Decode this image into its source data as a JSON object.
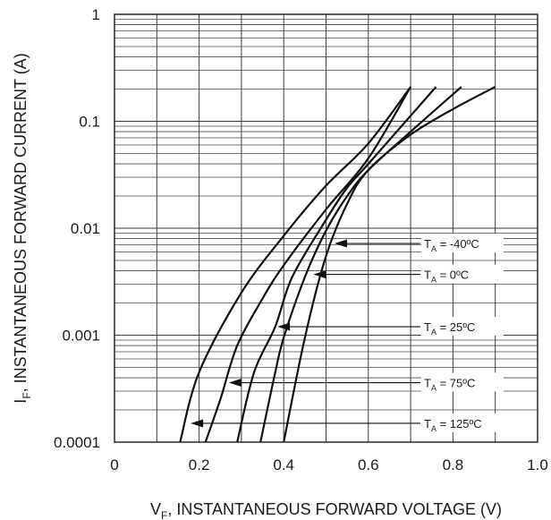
{
  "chart_data": {
    "type": "line",
    "xlabel": {
      "prefix": "V",
      "subscript": "F",
      "text": ", INSTANTANEOUS FORWARD VOLTAGE (V)"
    },
    "ylabel": {
      "prefix": "I",
      "subscript": "F",
      "text": ", INSTANTANEOUS FORWARD CURRENT (A)"
    },
    "x_scale": "linear",
    "y_scale": "log",
    "xlim": [
      0,
      1.0
    ],
    "ylim": [
      0.0001,
      1
    ],
    "x_ticks": [
      0,
      0.2,
      0.4,
      0.6,
      0.8,
      1.0
    ],
    "x_tick_labels": [
      "0",
      "0.2",
      "0.4",
      "0.6",
      "0.8",
      "1.0"
    ],
    "y_ticks": [
      0.0001,
      0.001,
      0.01,
      0.1,
      1
    ],
    "y_tick_labels": [
      "0.0001",
      "0.001",
      "0.01",
      "0.1",
      "1"
    ],
    "grid": true,
    "series": [
      {
        "name": "T_A = -40°C",
        "label_main": "T",
        "label_sub": "A",
        "label_rest": " = -40ºC",
        "arrow_to": [
          0.52,
          0.0072
        ],
        "x": [
          0.4,
          0.45,
          0.5,
          0.55,
          0.6,
          0.7,
          0.8,
          0.9
        ],
        "y": [
          0.0001,
          0.00095,
          0.0055,
          0.017,
          0.035,
          0.075,
          0.13,
          0.21
        ]
      },
      {
        "name": "T_A = 0°C",
        "label_main": "T",
        "label_sub": "A",
        "label_rest": " = 0ºC",
        "arrow_to": [
          0.47,
          0.0037
        ],
        "x": [
          0.345,
          0.38,
          0.4,
          0.45,
          0.5,
          0.55,
          0.6,
          0.7,
          0.82
        ],
        "y": [
          0.0001,
          0.00045,
          0.00095,
          0.0035,
          0.0095,
          0.02,
          0.035,
          0.08,
          0.21
        ]
      },
      {
        "name": "T_A = 25°C",
        "label_main": "T",
        "label_sub": "A",
        "label_rest": " = 25ºC",
        "arrow_to": [
          0.385,
          0.0012
        ],
        "x": [
          0.29,
          0.33,
          0.38,
          0.42,
          0.5,
          0.55,
          0.6,
          0.76
        ],
        "y": [
          0.0001,
          0.00045,
          0.0012,
          0.0035,
          0.012,
          0.024,
          0.04,
          0.21
        ]
      },
      {
        "name": "T_A = 75°C",
        "label_main": "T",
        "label_sub": "A",
        "label_rest": " = 75ºC",
        "arrow_to": [
          0.27,
          0.00036
        ],
        "x": [
          0.215,
          0.25,
          0.29,
          0.35,
          0.4,
          0.5,
          0.6,
          0.7
        ],
        "y": [
          0.0001,
          0.00025,
          0.0008,
          0.0022,
          0.0045,
          0.015,
          0.045,
          0.21
        ]
      },
      {
        "name": "T_A = 125°C",
        "label_main": "T",
        "label_sub": "A",
        "label_rest": " = 125ºC",
        "arrow_to": [
          0.18,
          0.00015
        ],
        "x": [
          0.155,
          0.2,
          0.3,
          0.4,
          0.5,
          0.6,
          0.7
        ],
        "y": [
          0.0001,
          0.00045,
          0.0025,
          0.0085,
          0.025,
          0.062,
          0.21
        ]
      }
    ]
  }
}
